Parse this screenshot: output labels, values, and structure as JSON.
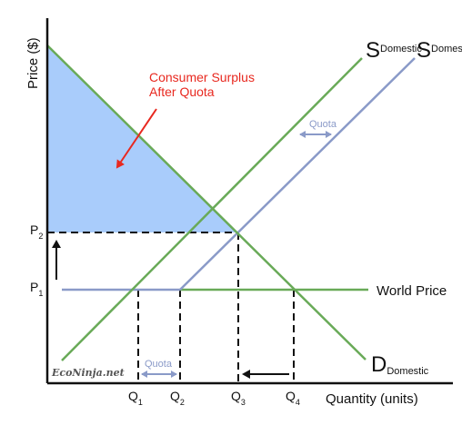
{
  "axes": {
    "y_label": "Price ($)",
    "x_label": "Quantity (units)"
  },
  "price_ticks": [
    {
      "letter": "P",
      "sub": "2"
    },
    {
      "letter": "P",
      "sub": "1"
    }
  ],
  "quantity_ticks": [
    {
      "letter": "Q",
      "sub": "1"
    },
    {
      "letter": "Q",
      "sub": "2"
    },
    {
      "letter": "Q",
      "sub": "3"
    },
    {
      "letter": "Q",
      "sub": "4"
    }
  ],
  "curves": {
    "supply_domestic": {
      "letter": "S",
      "sub": "Domestic"
    },
    "supply_quota": {
      "letter": "S",
      "sub": "Domestic+Quota"
    },
    "demand_domestic": {
      "letter": "D",
      "sub": "Domestic"
    },
    "world_price": "World Price"
  },
  "annotations": {
    "consumer_surplus_line1": "Consumer Surplus",
    "consumer_surplus_line2": "After Quota",
    "quota_top": "Quota",
    "quota_bottom": "Quota"
  },
  "brand": "EcoNinja.net",
  "colors": {
    "surplus_fill": "#a9ccfb",
    "supply_green": "#69aa58",
    "demand_green": "#69aa58",
    "supply_shift": "#8a9ac8",
    "world_price_line": "#69aa58",
    "annotation_red": "#e8281f",
    "quota_purple": "#8a9ac8"
  }
}
